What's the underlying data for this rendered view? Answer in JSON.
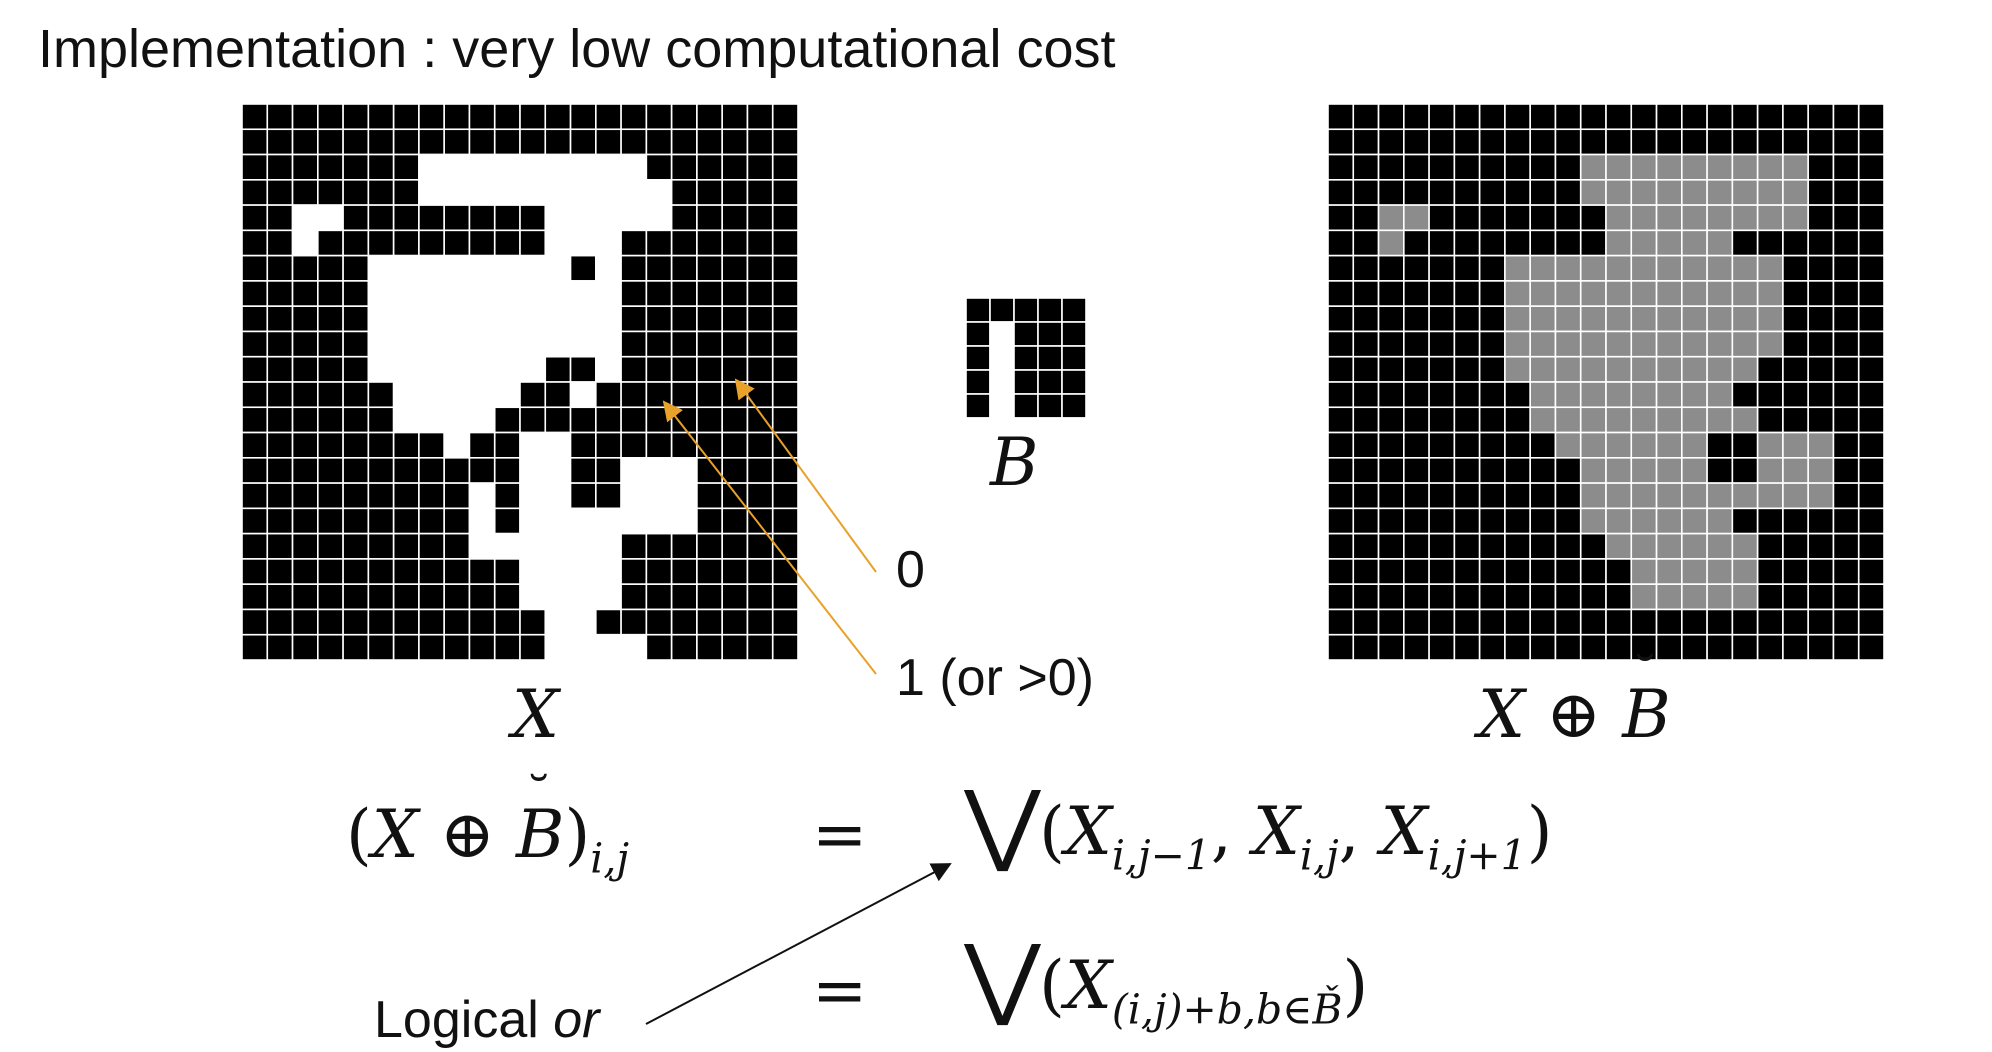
{
  "title": "Implementation : very low computational cost",
  "images": {
    "X": {
      "rows": [
        "0000000000000000000000",
        "0000000000000000000000",
        "0000000111111111000000",
        "0000000111111111100000",
        "0011000000001111100000",
        "0010000000001110000000",
        "0000011111111010000000",
        "0000011111111110000000",
        "0000011111111110000000",
        "0000011111111110000000",
        "0000011111110010000000",
        "0000001111100100000000",
        "0000001111000000000000",
        "0000000010011000000000",
        "0000000000011001110000",
        "0000000001011001110000",
        "0000000001011111110000",
        "0000000001111110000000",
        "0000000000011110000000",
        "0000000000011110000000",
        "0000000000001100000000",
        "0000000000001111000000"
      ]
    },
    "B": {
      "rows": [
        "00000",
        "01000",
        "01000",
        "01000",
        "01000",
        "00000"
      ]
    },
    "XB": {
      "rows": [
        "0000000000000000000000",
        "0000000000000000000000",
        "0000000000222222222000",
        "0000000000222222222000",
        "0022000000022222222000",
        "0020000000022222000000",
        "0000000222222222220000",
        "0000000222222222220000",
        "0000000222222222220000",
        "0000000222222222220000",
        "0000000222222222200000",
        "0000000022222222000000",
        "0000000022222222200000",
        "0000000002222220022200",
        "0000000000222220022200",
        "0000000000222222222200",
        "0000000000222222000000",
        "0000000000022222200000",
        "0000000000002222200000",
        "0000000000002222200000",
        "0000000000000000000000",
        "0000000000000000000000"
      ]
    }
  },
  "captions": {
    "x": "X",
    "b": "B",
    "xb_x": "X",
    "xb_op": "⊕",
    "xb_b": "B"
  },
  "annotations": {
    "zero": "0",
    "one": "1 (or >0)",
    "logical_or_prefix": "Logical ",
    "logical_or_italic": "or"
  },
  "equations": {
    "lhs_open": "(",
    "lhs_x": "X",
    "lhs_op": "⊕",
    "lhs_b": "B",
    "lhs_close": ")",
    "lhs_sub": "i,j",
    "eq": "=",
    "vee": "⋁",
    "open": "(",
    "close": ")",
    "t1_x": "X",
    "t1_sub": "i,j−1",
    "sep1": ", ",
    "t2_x": "X",
    "t2_sub": "i,j",
    "sep2": ", ",
    "t3_x": "X",
    "t3_sub": "i,j+1",
    "row2_x": "X",
    "row2_sub": "(i,j)+b,b∈B̌"
  },
  "colors": {
    "black": "#000000",
    "white": "#ffffff",
    "gray": "#8c8c8c",
    "grid": "#ffffff",
    "orange_arrow": "#e8a12a",
    "black_arrow": "#111111"
  }
}
